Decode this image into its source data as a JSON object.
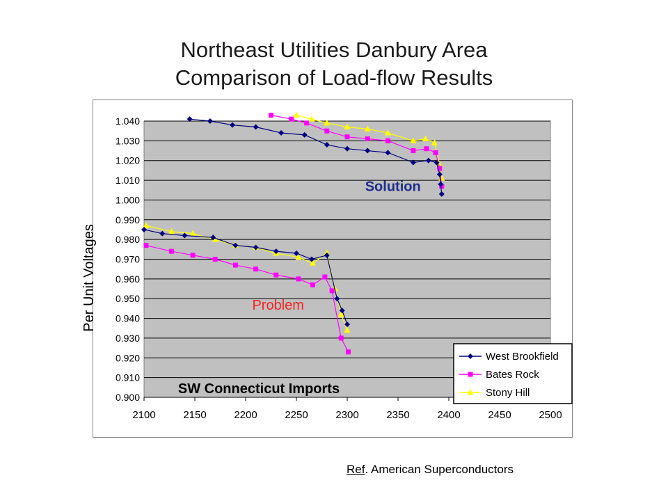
{
  "title_line1": "Northeast Utilities Danbury Area",
  "title_line2": "Comparison of Load-flow Results",
  "reference": {
    "prefix": "Ref",
    "suffix": ". American Superconductors"
  },
  "chart_data": {
    "type": "line",
    "title": "",
    "xlabel": "SW Connecticut Imports",
    "ylabel": "Per Unit Voltages",
    "xlim": [
      2100,
      2500
    ],
    "ylim": [
      0.9,
      1.04
    ],
    "x_ticks": [
      "2100",
      "2150",
      "2200",
      "2250",
      "2300",
      "2350",
      "2400",
      "2450",
      "2500"
    ],
    "y_ticks": [
      "0.900",
      "0.910",
      "0.920",
      "0.930",
      "0.940",
      "0.950",
      "0.960",
      "0.970",
      "0.980",
      "0.990",
      "1.000",
      "1.010",
      "1.020",
      "1.030",
      "1.040"
    ],
    "plot_background": "#c0c0c0",
    "grid": true,
    "legend_position": "bottom-right",
    "annotations": [
      {
        "text": "Solution",
        "x": 2345,
        "y": 1.0045,
        "color": "#1f2e8c"
      },
      {
        "text": "Problem",
        "x": 2232,
        "y": 0.9445,
        "color": "#ff2020"
      }
    ],
    "series": [
      {
        "name": "West Brookfield",
        "color": "#000080",
        "marker": "diamond",
        "segments": [
          [
            [
              2100,
              0.985
            ],
            [
              2118,
              0.983
            ],
            [
              2140,
              0.982
            ],
            [
              2168,
              0.981
            ],
            [
              2190,
              0.977
            ],
            [
              2210,
              0.976
            ],
            [
              2230,
              0.974
            ],
            [
              2250,
              0.973
            ],
            [
              2265,
              0.97
            ],
            [
              2280,
              0.972
            ],
            [
              2290,
              0.95
            ],
            [
              2295,
              0.944
            ],
            [
              2300,
              0.937
            ]
          ],
          [
            [
              2145,
              1.041
            ],
            [
              2165,
              1.04
            ],
            [
              2187,
              1.038
            ],
            [
              2210,
              1.037
            ],
            [
              2235,
              1.034
            ],
            [
              2258,
              1.033
            ],
            [
              2280,
              1.028
            ],
            [
              2300,
              1.026
            ],
            [
              2320,
              1.025
            ],
            [
              2340,
              1.024
            ],
            [
              2365,
              1.019
            ],
            [
              2380,
              1.02
            ],
            [
              2388,
              1.019
            ],
            [
              2391,
              1.013
            ],
            [
              2392,
              1.008
            ],
            [
              2393,
              1.003
            ]
          ]
        ]
      },
      {
        "name": "Bates Rock",
        "color": "#ff00ff",
        "marker": "square",
        "segments": [
          [
            [
              2102,
              0.977
            ],
            [
              2127,
              0.974
            ],
            [
              2148,
              0.972
            ],
            [
              2170,
              0.97
            ],
            [
              2190,
              0.967
            ],
            [
              2210,
              0.965
            ],
            [
              2230,
              0.962
            ],
            [
              2252,
              0.96
            ],
            [
              2266,
              0.957
            ],
            [
              2278,
              0.961
            ],
            [
              2285,
              0.954
            ],
            [
              2294,
              0.93
            ],
            [
              2301,
              0.923
            ]
          ],
          [
            [
              2225,
              1.043
            ],
            [
              2245,
              1.041
            ],
            [
              2260,
              1.039
            ],
            [
              2280,
              1.035
            ],
            [
              2300,
              1.032
            ],
            [
              2320,
              1.031
            ],
            [
              2340,
              1.03
            ],
            [
              2365,
              1.025
            ],
            [
              2378,
              1.026
            ],
            [
              2387,
              1.024
            ],
            [
              2391,
              1.016
            ],
            [
              2393,
              1.007
            ]
          ]
        ]
      },
      {
        "name": "Stony Hill",
        "color": "#ffff00",
        "marker": "triangle",
        "segments": [
          [
            [
              2102,
              0.987
            ],
            [
              2127,
              0.984
            ],
            [
              2148,
              0.983
            ],
            [
              2170,
              0.98
            ],
            [
              2190,
              0.977
            ],
            [
              2210,
              0.976
            ],
            [
              2230,
              0.973
            ],
            [
              2252,
              0.971
            ],
            [
              2266,
              0.968
            ],
            [
              2280,
              0.973
            ],
            [
              2288,
              0.955
            ],
            [
              2294,
              0.942
            ],
            [
              2300,
              0.934
            ]
          ],
          [
            [
              2250,
              1.043
            ],
            [
              2265,
              1.041
            ],
            [
              2280,
              1.039
            ],
            [
              2300,
              1.037
            ],
            [
              2320,
              1.036
            ],
            [
              2340,
              1.034
            ],
            [
              2365,
              1.03
            ],
            [
              2377,
              1.031
            ],
            [
              2386,
              1.029
            ],
            [
              2391,
              1.018
            ],
            [
              2393,
              1.011
            ]
          ]
        ]
      }
    ]
  }
}
